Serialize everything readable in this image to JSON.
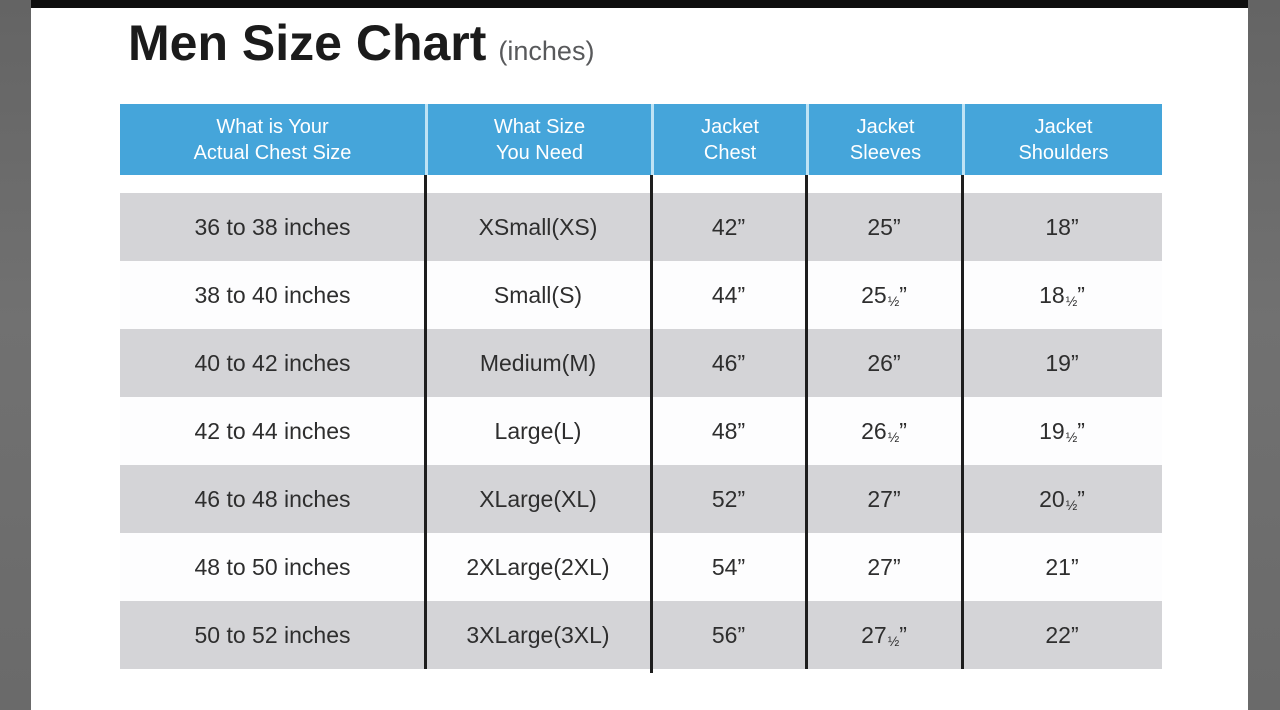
{
  "page": {
    "title": "Men Size Chart",
    "title_suffix": "(inches)"
  },
  "colors": {
    "header_bg": "#45A5DA",
    "header_text": "#FFFFFF",
    "header_separator": "#BEE3F5",
    "row_gray": "#D4D4D7",
    "row_white": "#FDFDFE",
    "column_divider": "#1E1E1E",
    "edge_strip": "#6C6C6C",
    "top_bar": "#0E0E0E",
    "title_text": "#1B1B1B",
    "title_suffix_text": "#58595B"
  },
  "table": {
    "columns": [
      {
        "line1": "What is Your",
        "line2": "Actual Chest Size"
      },
      {
        "line1": "What Size",
        "line2": "You Need"
      },
      {
        "line1": "Jacket",
        "line2": "Chest"
      },
      {
        "line1": "Jacket",
        "line2": "Sleeves"
      },
      {
        "line1": "Jacket",
        "line2": "Shoulders"
      }
    ],
    "rows": [
      {
        "chest_range": "36 to 38 inches",
        "size": "XSmall(XS)",
        "jacket_chest": "42”",
        "jacket_sleeves": "25”",
        "jacket_shoulders": "18”"
      },
      {
        "chest_range": "38 to 40 inches",
        "size": "Small(S)",
        "jacket_chest": "44”",
        "jacket_sleeves": "25½”",
        "jacket_shoulders": "18½”"
      },
      {
        "chest_range": "40 to 42 inches",
        "size": "Medium(M)",
        "jacket_chest": "46”",
        "jacket_sleeves": "26”",
        "jacket_shoulders": "19”"
      },
      {
        "chest_range": "42 to 44 inches",
        "size": "Large(L)",
        "jacket_chest": "48”",
        "jacket_sleeves": "26½”",
        "jacket_shoulders": "19½”"
      },
      {
        "chest_range": "46 to 48 inches",
        "size": "XLarge(XL)",
        "jacket_chest": "52”",
        "jacket_sleeves": "27”",
        "jacket_shoulders": "20½”"
      },
      {
        "chest_range": "48 to 50 inches",
        "size": "2XLarge(2XL)",
        "jacket_chest": "54”",
        "jacket_sleeves": "27”",
        "jacket_shoulders": "21”"
      },
      {
        "chest_range": "50 to 52 inches",
        "size": "3XLarge(3XL)",
        "jacket_chest": "56”",
        "jacket_sleeves": "27½”",
        "jacket_shoulders": "22”"
      }
    ]
  },
  "chart_data": {
    "type": "table",
    "title": "Men Size Chart (inches)",
    "columns": [
      "What is Your Actual Chest Size",
      "What Size You Need",
      "Jacket Chest",
      "Jacket Sleeves",
      "Jacket Shoulders"
    ],
    "rows": [
      [
        "36 to 38 inches",
        "XSmall(XS)",
        "42”",
        "25”",
        "18”"
      ],
      [
        "38 to 40 inches",
        "Small(S)",
        "44”",
        "25½”",
        "18½”"
      ],
      [
        "40 to 42 inches",
        "Medium(M)",
        "46”",
        "26”",
        "19”"
      ],
      [
        "42 to 44 inches",
        "Large(L)",
        "48”",
        "26½”",
        "19½”"
      ],
      [
        "46 to 48 inches",
        "XLarge(XL)",
        "52”",
        "27”",
        "20½”"
      ],
      [
        "48 to 50 inches",
        "2XLarge(2XL)",
        "54”",
        "27”",
        "21”"
      ],
      [
        "50 to 52 inches",
        "3XLarge(3XL)",
        "56”",
        "27½”",
        "22”"
      ]
    ],
    "units": "inches"
  }
}
